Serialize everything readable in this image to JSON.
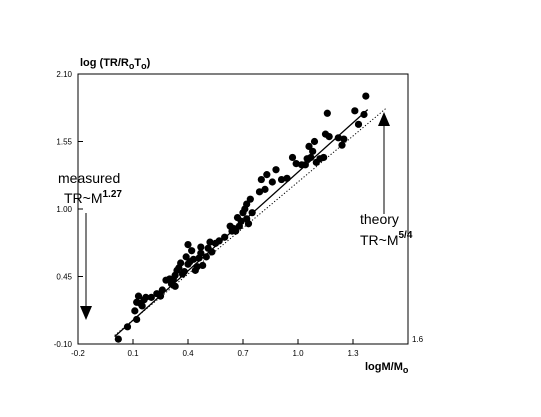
{
  "chart_data": {
    "type": "scatter",
    "title": "",
    "ylabel": {
      "main": "log (TR/R",
      "sub1": "o",
      "mid": "T",
      "sub2": "o",
      "close": ")"
    },
    "xlabel": {
      "main": "logM/M",
      "sub": "o"
    },
    "xlim": [
      -0.2,
      1.6
    ],
    "ylim": [
      -0.1,
      2.1
    ],
    "x_ticks": [
      "-0.2",
      "0.1",
      "0.4",
      "0.7",
      "1.0",
      "1.3",
      "1.6"
    ],
    "x_tick_values": [
      -0.2,
      0.1,
      0.4,
      0.7,
      1.0,
      1.3,
      1.6
    ],
    "y_ticks": [
      "2.10",
      "1.55",
      "1.00",
      "0.45",
      "-0.10"
    ],
    "y_tick_values": [
      2.1,
      1.55,
      1.0,
      0.45,
      -0.1
    ],
    "grid": false,
    "points": [
      [
        0.02,
        -0.06
      ],
      [
        0.07,
        0.04
      ],
      [
        0.11,
        0.17
      ],
      [
        0.12,
        0.1
      ],
      [
        0.13,
        0.29
      ],
      [
        0.12,
        0.24
      ],
      [
        0.14,
        0.23
      ],
      [
        0.16,
        0.26
      ],
      [
        0.15,
        0.21
      ],
      [
        0.17,
        0.28
      ],
      [
        0.2,
        0.28
      ],
      [
        0.23,
        0.31
      ],
      [
        0.25,
        0.29
      ],
      [
        0.26,
        0.34
      ],
      [
        0.28,
        0.42
      ],
      [
        0.3,
        0.43
      ],
      [
        0.31,
        0.39
      ],
      [
        0.32,
        0.43
      ],
      [
        0.33,
        0.37
      ],
      [
        0.33,
        0.46
      ],
      [
        0.34,
        0.5
      ],
      [
        0.35,
        0.52
      ],
      [
        0.36,
        0.56
      ],
      [
        0.37,
        0.47
      ],
      [
        0.38,
        0.49
      ],
      [
        0.39,
        0.61
      ],
      [
        0.4,
        0.55
      ],
      [
        0.4,
        0.71
      ],
      [
        0.41,
        0.57
      ],
      [
        0.42,
        0.66
      ],
      [
        0.43,
        0.59
      ],
      [
        0.44,
        0.5
      ],
      [
        0.45,
        0.53
      ],
      [
        0.46,
        0.6
      ],
      [
        0.47,
        0.64
      ],
      [
        0.47,
        0.69
      ],
      [
        0.48,
        0.54
      ],
      [
        0.5,
        0.61
      ],
      [
        0.51,
        0.68
      ],
      [
        0.52,
        0.73
      ],
      [
        0.53,
        0.65
      ],
      [
        0.55,
        0.72
      ],
      [
        0.57,
        0.74
      ],
      [
        0.6,
        0.77
      ],
      [
        0.63,
        0.86
      ],
      [
        0.64,
        0.82
      ],
      [
        0.65,
        0.84
      ],
      [
        0.66,
        0.82
      ],
      [
        0.67,
        0.93
      ],
      [
        0.68,
        0.86
      ],
      [
        0.69,
        0.9
      ],
      [
        0.7,
        0.97
      ],
      [
        0.71,
        1.0
      ],
      [
        0.72,
        0.92
      ],
      [
        0.72,
        1.04
      ],
      [
        0.73,
        0.88
      ],
      [
        0.74,
        1.08
      ],
      [
        0.75,
        0.97
      ],
      [
        0.79,
        1.14
      ],
      [
        0.8,
        1.24
      ],
      [
        0.82,
        1.16
      ],
      [
        0.83,
        1.28
      ],
      [
        0.86,
        1.22
      ],
      [
        0.88,
        1.32
      ],
      [
        0.91,
        1.24
      ],
      [
        0.94,
        1.25
      ],
      [
        0.97,
        1.42
      ],
      [
        0.99,
        1.37
      ],
      [
        1.02,
        1.36
      ],
      [
        1.04,
        1.36
      ],
      [
        1.05,
        1.41
      ],
      [
        1.06,
        1.51
      ],
      [
        1.07,
        1.42
      ],
      [
        1.08,
        1.47
      ],
      [
        1.09,
        1.55
      ],
      [
        1.1,
        1.38
      ],
      [
        1.12,
        1.41
      ],
      [
        1.14,
        1.42
      ],
      [
        1.15,
        1.61
      ],
      [
        1.16,
        1.78
      ],
      [
        1.17,
        1.59
      ],
      [
        1.22,
        1.58
      ],
      [
        1.24,
        1.52
      ],
      [
        1.25,
        1.57
      ],
      [
        1.31,
        1.8
      ],
      [
        1.33,
        1.69
      ],
      [
        1.36,
        1.77
      ],
      [
        1.37,
        1.92
      ]
    ],
    "series": [
      {
        "values": [
          [
            0.0,
            -0.04
          ],
          [
            1.38,
            1.81
          ]
        ],
        "style": "solid"
      },
      {
        "values": [
          [
            0.0,
            -0.03
          ],
          [
            1.48,
            1.82
          ]
        ],
        "style": "dotted"
      }
    ],
    "annotations": [
      {
        "text": "measured",
        "formula": "TR~M",
        "exponent": "1.27"
      },
      {
        "text": "theory",
        "formula": "TR~M",
        "exponent": "5/4"
      }
    ]
  }
}
